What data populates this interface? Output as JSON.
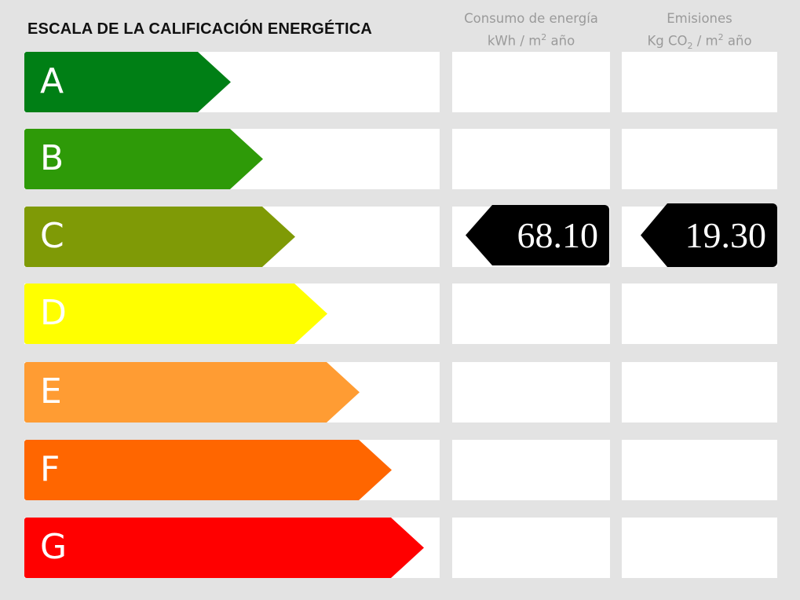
{
  "title": "ESCALA DE LA CALIFICACIÓN ENERGÉTICA",
  "columns": {
    "energy": {
      "line1": "Consumo de energía",
      "line2_pre": "kWh / m",
      "line2_sup": "2",
      "line2_post": " año"
    },
    "emissions": {
      "line1": "Emisiones",
      "line2_pre": "Kg CO",
      "line2_sub": "2",
      "line2_mid": " / m",
      "line2_sup": "2",
      "line2_post": " año"
    }
  },
  "classes": [
    {
      "letter": "A",
      "color": "#007f15"
    },
    {
      "letter": "B",
      "color": "#2e9a08"
    },
    {
      "letter": "C",
      "color": "#7f9a06"
    },
    {
      "letter": "D",
      "color": "#ffff00"
    },
    {
      "letter": "E",
      "color": "#ff9c33"
    },
    {
      "letter": "F",
      "color": "#ff6600"
    },
    {
      "letter": "G",
      "color": "#ff0000"
    }
  ],
  "rating": {
    "class": "C",
    "energy_value": "68.10",
    "emissions_value": "19.30"
  }
}
